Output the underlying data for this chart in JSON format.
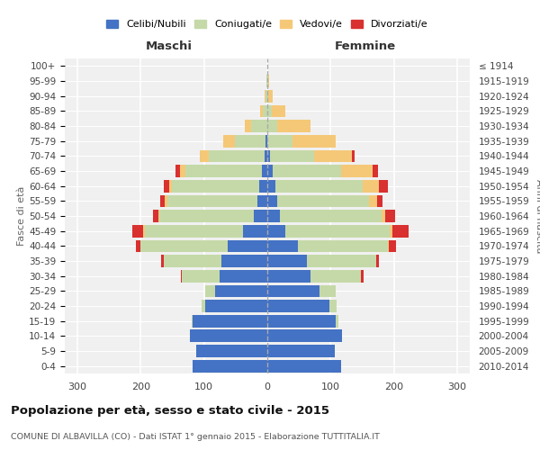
{
  "age_groups": [
    "100+",
    "95-99",
    "90-94",
    "85-89",
    "80-84",
    "75-79",
    "70-74",
    "65-69",
    "60-64",
    "55-59",
    "50-54",
    "45-49",
    "40-44",
    "35-39",
    "30-34",
    "25-29",
    "20-24",
    "15-19",
    "10-14",
    "5-9",
    "0-4"
  ],
  "birth_years": [
    "≤ 1914",
    "1915-1919",
    "1920-1924",
    "1925-1929",
    "1930-1934",
    "1935-1939",
    "1940-1944",
    "1945-1949",
    "1950-1954",
    "1955-1959",
    "1960-1964",
    "1965-1969",
    "1970-1974",
    "1975-1979",
    "1980-1984",
    "1985-1989",
    "1990-1994",
    "1995-1999",
    "2000-2004",
    "2005-2009",
    "2010-2014"
  ],
  "male_celibi": [
    0,
    0,
    0,
    0,
    0,
    3,
    4,
    8,
    13,
    16,
    22,
    38,
    62,
    72,
    75,
    82,
    98,
    118,
    122,
    112,
    118
  ],
  "male_coniugati": [
    0,
    1,
    3,
    7,
    25,
    48,
    88,
    122,
    138,
    142,
    148,
    155,
    138,
    92,
    60,
    16,
    6,
    2,
    0,
    0,
    0
  ],
  "male_vedovi": [
    0,
    0,
    1,
    4,
    10,
    18,
    14,
    8,
    4,
    4,
    2,
    3,
    0,
    0,
    0,
    0,
    0,
    0,
    0,
    0,
    0
  ],
  "male_divorziati": [
    0,
    0,
    0,
    0,
    0,
    0,
    0,
    7,
    9,
    7,
    9,
    17,
    7,
    4,
    2,
    0,
    0,
    0,
    0,
    0,
    0
  ],
  "female_nubili": [
    0,
    0,
    0,
    0,
    0,
    0,
    4,
    8,
    13,
    16,
    20,
    28,
    48,
    62,
    68,
    82,
    98,
    108,
    118,
    106,
    116
  ],
  "female_coniugate": [
    0,
    1,
    2,
    7,
    16,
    40,
    70,
    108,
    138,
    145,
    160,
    165,
    142,
    110,
    80,
    26,
    12,
    4,
    0,
    0,
    0
  ],
  "female_vedove": [
    0,
    2,
    7,
    22,
    52,
    68,
    60,
    50,
    26,
    12,
    6,
    4,
    2,
    0,
    0,
    0,
    0,
    0,
    0,
    0,
    0
  ],
  "female_divorziate": [
    0,
    0,
    0,
    0,
    0,
    0,
    4,
    9,
    13,
    9,
    16,
    26,
    12,
    4,
    4,
    0,
    0,
    0,
    0,
    0,
    0
  ],
  "colors_celibi": "#4472c4",
  "colors_coniugati": "#c5d9a8",
  "colors_vedovi": "#f5c878",
  "colors_divorziati": "#d93030",
  "xlim": 320,
  "legend_labels": [
    "Celibi/Nubili",
    "Coniugati/e",
    "Vedovi/e",
    "Divorziati/e"
  ],
  "legend_colors": [
    "#4472c4",
    "#c5d9a8",
    "#f5c878",
    "#d93030"
  ],
  "title": "Popolazione per età, sesso e stato civile - 2015",
  "subtitle": "COMUNE DI ALBAVILLA (CO) - Dati ISTAT 1° gennaio 2015 - Elaborazione TUTTITALIA.IT",
  "label_maschi": "Maschi",
  "label_femmine": "Femmine",
  "label_fasce": "Fasce di età",
  "label_anni": "Anni di nascita",
  "bg_color": "#f0f0f0"
}
